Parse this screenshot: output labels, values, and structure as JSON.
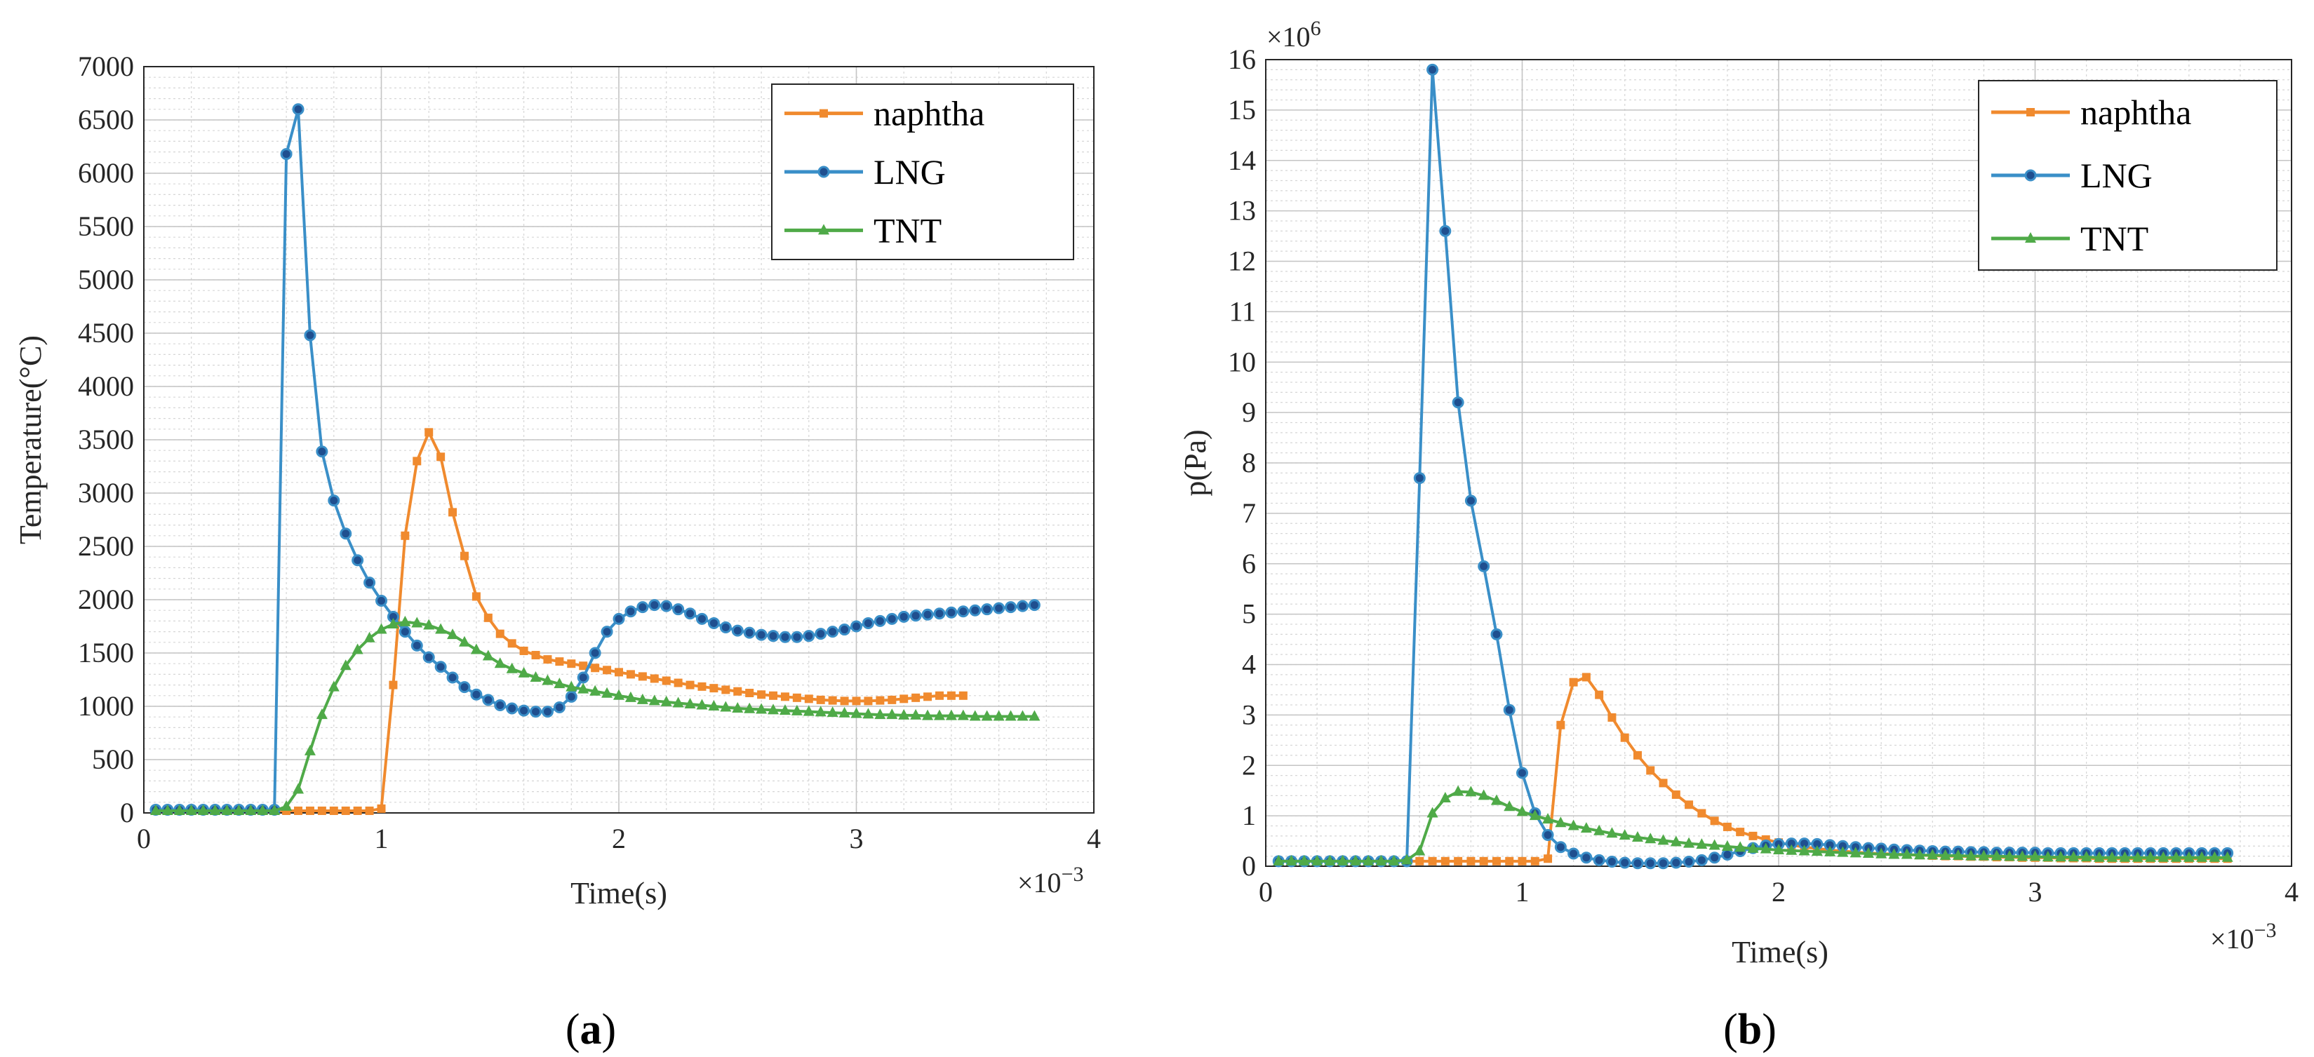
{
  "captions": {
    "a": "a",
    "b": "b"
  },
  "colors": {
    "naphtha": "#F08A2E",
    "LNG": "#3A8FC8",
    "TNT": "#4FAA48"
  },
  "chart_data": [
    {
      "type": "line",
      "panel": "a",
      "xlabel": "Time(s)",
      "ylabel": "Temperature(°C)",
      "x_multiplier": "×10",
      "x_multiplier_exp": "−3",
      "xlim": [
        0,
        4
      ],
      "ylim": [
        0,
        7000
      ],
      "xticks": [
        "0",
        "1",
        "2",
        "3",
        "4"
      ],
      "yticks": [
        "0",
        "500",
        "1000",
        "1500",
        "2000",
        "2500",
        "3000",
        "3500",
        "4000",
        "4500",
        "5000",
        "5500",
        "6000",
        "6500",
        "7000"
      ],
      "grid": true,
      "legend": "top-right",
      "x_start": 0.05,
      "x_step": 0.05,
      "series": [
        {
          "name": "naphtha",
          "marker": "square",
          "values": [
            20,
            20,
            20,
            20,
            20,
            20,
            20,
            20,
            20,
            20,
            20,
            20,
            20,
            20,
            20,
            20,
            20,
            20,
            20,
            40,
            1200,
            2600,
            3300,
            3570,
            3340,
            2820,
            2410,
            2030,
            1830,
            1680,
            1590,
            1520,
            1480,
            1440,
            1420,
            1400,
            1380,
            1360,
            1340,
            1320,
            1300,
            1280,
            1260,
            1240,
            1220,
            1200,
            1185,
            1170,
            1155,
            1140,
            1125,
            1110,
            1100,
            1090,
            1080,
            1070,
            1060,
            1055,
            1050,
            1050,
            1050,
            1055,
            1060,
            1070,
            1080,
            1090,
            1100,
            1100,
            1100
          ]
        },
        {
          "name": "LNG",
          "marker": "circle",
          "x_override": [
            0.05,
            0.1,
            0.15,
            0.2,
            0.25,
            0.3,
            0.35,
            0.4,
            0.45,
            0.5,
            0.55,
            0.6,
            0.65,
            0.7,
            0.75,
            0.8,
            0.85,
            0.9,
            0.95,
            1.0,
            1.05,
            1.1,
            1.15,
            1.2,
            1.25,
            1.3,
            1.35,
            1.4,
            1.45,
            1.5,
            1.55,
            1.6,
            1.65,
            1.7,
            1.75,
            1.8,
            1.85,
            1.9,
            1.95,
            2.0,
            2.05,
            2.1,
            2.15,
            2.2,
            2.25,
            2.3,
            2.35,
            2.4,
            2.45,
            2.5,
            2.55,
            2.6,
            2.65,
            2.7,
            2.75,
            2.8,
            2.85,
            2.9,
            2.95,
            3.0,
            3.05,
            3.1,
            3.15,
            3.2,
            3.25,
            3.3,
            3.35,
            3.4,
            3.45,
            3.5,
            3.55,
            3.6,
            3.65,
            3.7,
            3.75
          ],
          "values": [
            30,
            30,
            30,
            30,
            30,
            30,
            30,
            30,
            30,
            30,
            30,
            6180,
            6600,
            4480,
            3390,
            2930,
            2620,
            2370,
            2160,
            1990,
            1840,
            1700,
            1570,
            1460,
            1370,
            1270,
            1180,
            1110,
            1060,
            1010,
            980,
            960,
            950,
            950,
            990,
            1090,
            1270,
            1500,
            1700,
            1820,
            1890,
            1930,
            1950,
            1940,
            1910,
            1870,
            1820,
            1780,
            1740,
            1710,
            1690,
            1670,
            1660,
            1650,
            1650,
            1660,
            1680,
            1700,
            1720,
            1750,
            1780,
            1800,
            1820,
            1840,
            1850,
            1860,
            1870,
            1880,
            1890,
            1900,
            1910,
            1920,
            1930,
            1940,
            1950
          ]
        },
        {
          "name": "TNT",
          "marker": "triangle",
          "values": [
            20,
            20,
            20,
            20,
            20,
            20,
            20,
            20,
            20,
            20,
            20,
            60,
            220,
            580,
            920,
            1180,
            1380,
            1530,
            1640,
            1720,
            1770,
            1790,
            1780,
            1760,
            1720,
            1670,
            1600,
            1530,
            1470,
            1400,
            1350,
            1310,
            1270,
            1240,
            1210,
            1180,
            1160,
            1140,
            1120,
            1100,
            1080,
            1060,
            1050,
            1040,
            1030,
            1020,
            1010,
            1000,
            990,
            980,
            975,
            970,
            965,
            960,
            955,
            950,
            945,
            940,
            935,
            930,
            925,
            920,
            920,
            915,
            915,
            910,
            910,
            910,
            910,
            905,
            905,
            905,
            905,
            905,
            905
          ]
        }
      ]
    },
    {
      "type": "line",
      "panel": "b",
      "xlabel": "Time(s)",
      "ylabel": "p(Pa)",
      "x_multiplier": "×10",
      "x_multiplier_exp": "−3",
      "y_multiplier": "×10",
      "y_multiplier_exp": "6",
      "xlim": [
        0,
        4
      ],
      "ylim": [
        0,
        16
      ],
      "xticks": [
        "0",
        "1",
        "2",
        "3",
        "4"
      ],
      "yticks": [
        "0",
        "1",
        "2",
        "3",
        "4",
        "5",
        "6",
        "7",
        "8",
        "9",
        "10",
        "11",
        "12",
        "13",
        "14",
        "15",
        "16"
      ],
      "grid": true,
      "legend": "top-right",
      "x_start": 0.05,
      "x_step": 0.05,
      "series": [
        {
          "name": "naphtha",
          "marker": "square",
          "values": [
            0.1,
            0.1,
            0.1,
            0.1,
            0.1,
            0.1,
            0.1,
            0.1,
            0.1,
            0.1,
            0.1,
            0.1,
            0.1,
            0.1,
            0.1,
            0.1,
            0.1,
            0.1,
            0.1,
            0.1,
            0.1,
            0.15,
            2.8,
            3.65,
            3.75,
            3.4,
            2.95,
            2.55,
            2.2,
            1.9,
            1.65,
            1.42,
            1.22,
            1.05,
            0.9,
            0.78,
            0.68,
            0.6,
            0.53,
            0.47,
            0.42,
            0.38,
            0.35,
            0.32,
            0.3,
            0.28,
            0.26,
            0.25,
            0.24,
            0.23,
            0.22,
            0.21,
            0.2,
            0.2,
            0.19,
            0.19,
            0.18,
            0.18,
            0.17,
            0.17,
            0.17,
            0.16,
            0.16,
            0.16,
            0.15,
            0.15,
            0.15,
            0.15,
            0.15,
            0.15,
            0.15,
            0.15,
            0.15,
            0.15,
            0.15
          ]
        },
        {
          "name": "LNG",
          "marker": "circle",
          "values": [
            0.1,
            0.1,
            0.1,
            0.1,
            0.1,
            0.1,
            0.1,
            0.1,
            0.1,
            0.1,
            0.1,
            7.7,
            15.8,
            12.6,
            9.2,
            7.25,
            5.95,
            4.6,
            3.1,
            1.85,
            1.05,
            0.62,
            0.38,
            0.25,
            0.17,
            0.12,
            0.09,
            0.07,
            0.06,
            0.06,
            0.06,
            0.07,
            0.09,
            0.12,
            0.17,
            0.23,
            0.3,
            0.36,
            0.41,
            0.44,
            0.45,
            0.45,
            0.44,
            0.42,
            0.4,
            0.38,
            0.36,
            0.35,
            0.33,
            0.32,
            0.31,
            0.3,
            0.29,
            0.29,
            0.28,
            0.28,
            0.27,
            0.27,
            0.27,
            0.27,
            0.26,
            0.26,
            0.26,
            0.26,
            0.26,
            0.26,
            0.26,
            0.26,
            0.26,
            0.26,
            0.26,
            0.26,
            0.26,
            0.26,
            0.26
          ]
        },
        {
          "name": "TNT",
          "marker": "triangle",
          "values": [
            0.1,
            0.1,
            0.1,
            0.1,
            0.1,
            0.1,
            0.1,
            0.1,
            0.1,
            0.1,
            0.12,
            0.3,
            1.05,
            1.35,
            1.48,
            1.47,
            1.4,
            1.3,
            1.18,
            1.08,
            1.0,
            0.93,
            0.86,
            0.8,
            0.75,
            0.7,
            0.65,
            0.61,
            0.57,
            0.54,
            0.51,
            0.48,
            0.45,
            0.43,
            0.41,
            0.39,
            0.37,
            0.35,
            0.34,
            0.32,
            0.31,
            0.3,
            0.29,
            0.28,
            0.27,
            0.26,
            0.25,
            0.24,
            0.23,
            0.23,
            0.22,
            0.22,
            0.21,
            0.21,
            0.2,
            0.2,
            0.2,
            0.19,
            0.19,
            0.19,
            0.18,
            0.18,
            0.18,
            0.18,
            0.17,
            0.17,
            0.17,
            0.17,
            0.17,
            0.17,
            0.17,
            0.17,
            0.17,
            0.17,
            0.17
          ]
        }
      ]
    }
  ]
}
